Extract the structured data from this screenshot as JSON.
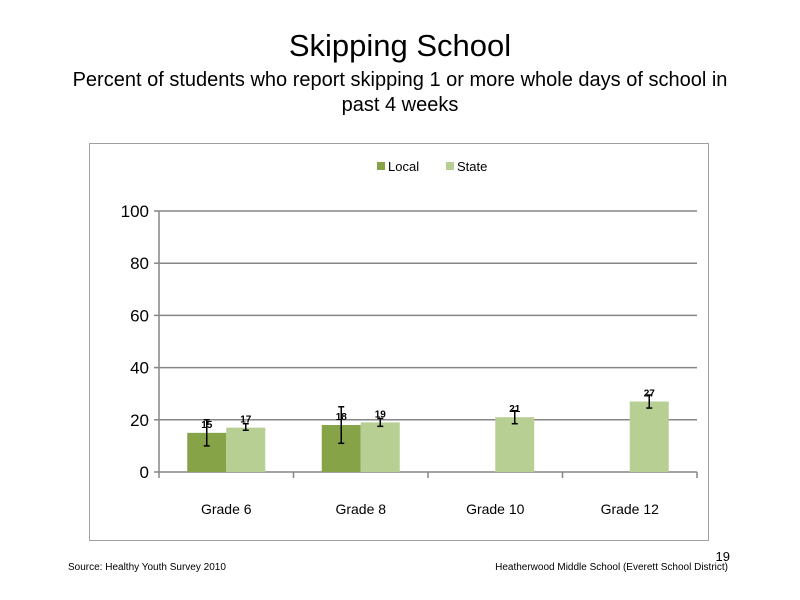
{
  "title": "Skipping School",
  "subtitle": "Percent of students who report skipping 1 or more whole days of school in past 4 weeks",
  "footer": {
    "source": "Source: Healthy Youth Survey 2010",
    "school": "Heatherwood Middle  School (Everett School District)",
    "page_number": "19"
  },
  "chart_data": {
    "type": "bar",
    "categories": [
      "Grade 6",
      "Grade 8",
      "Grade 10",
      "Grade 12"
    ],
    "series": [
      {
        "name": "Local",
        "color": "#86a447",
        "values": [
          15,
          18,
          null,
          null
        ],
        "labels": [
          "15",
          "18",
          "",
          ""
        ],
        "error_low": [
          10,
          11,
          null,
          null
        ],
        "error_high": [
          20,
          25,
          null,
          null
        ]
      },
      {
        "name": "State",
        "color": "#b8cf94",
        "values": [
          17,
          19,
          21,
          27
        ],
        "labels": [
          "17",
          "19",
          "21",
          "27"
        ],
        "error_low": [
          16,
          17.5,
          18.5,
          24.5
        ],
        "error_high": [
          18.5,
          20.5,
          23.5,
          29.5
        ]
      }
    ],
    "y_ticks": [
      "0",
      "20",
      "40",
      "60",
      "80",
      "100"
    ],
    "ylim": [
      0,
      100
    ],
    "grid": true,
    "legend_position": "top-center",
    "title": "",
    "xlabel": "",
    "ylabel": ""
  }
}
